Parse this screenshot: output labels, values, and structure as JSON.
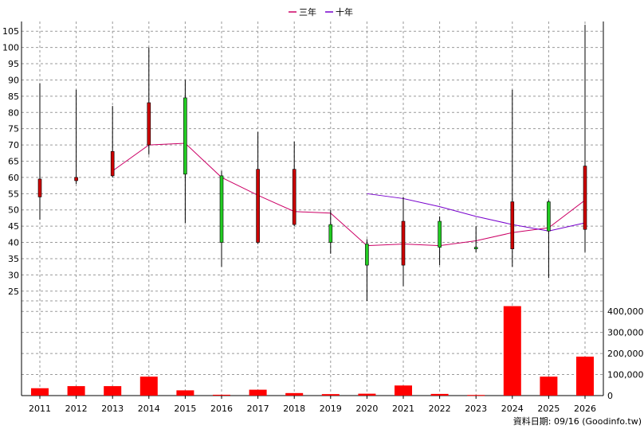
{
  "chart_data": {
    "type": "candlestick-with-volume",
    "legend": [
      {
        "name": "三年",
        "color": "#cc0066"
      },
      {
        "name": "十年",
        "color": "#7700cc"
      }
    ],
    "x_labels": [
      "2011",
      "2012",
      "2013",
      "2014",
      "2015",
      "2016",
      "2017",
      "2018",
      "2019",
      "2020",
      "2021",
      "2022",
      "2023",
      "2024",
      "2025",
      "2026"
    ],
    "price_axis": {
      "ylim": [
        22,
        108
      ],
      "ticks": [
        25,
        30,
        35,
        40,
        45,
        50,
        55,
        60,
        65,
        70,
        75,
        80,
        85,
        90,
        95,
        100,
        105
      ],
      "tick_labels": [
        "25",
        "30",
        "35",
        "40",
        "45",
        "50",
        "55",
        "60",
        "65",
        "70",
        "75",
        "80",
        "85",
        "90",
        "95",
        "100",
        "105"
      ]
    },
    "volume_axis": {
      "ylim": [
        0,
        450000
      ],
      "ticks": [
        0,
        100000,
        200000,
        300000,
        400000
      ],
      "tick_labels": [
        "0",
        "100,000",
        "200,000",
        "300,000",
        "400,000"
      ]
    },
    "candles": [
      {
        "year": "2011",
        "open": 54,
        "close": 59.5,
        "high": 89,
        "low": 47
      },
      {
        "year": "2012",
        "open": 59,
        "close": 60,
        "high": 87,
        "low": 58
      },
      {
        "year": "2013",
        "open": 60.5,
        "close": 68,
        "high": 82,
        "low": 60
      },
      {
        "year": "2014",
        "open": 70,
        "close": 83,
        "high": 100,
        "low": 67
      },
      {
        "year": "2015",
        "open": 84.5,
        "close": 61,
        "high": 90,
        "low": 46
      },
      {
        "year": "2016",
        "open": 60.5,
        "close": 40,
        "high": 62,
        "low": 32.5
      },
      {
        "year": "2017",
        "open": 40,
        "close": 62.5,
        "high": 74,
        "low": 39.5
      },
      {
        "year": "2018",
        "open": 45.5,
        "close": 62.5,
        "high": 71,
        "low": 45
      },
      {
        "year": "2019",
        "open": 45.5,
        "close": 40,
        "high": 50,
        "low": 36.5
      },
      {
        "year": "2020",
        "open": 39.5,
        "close": 33,
        "high": 41,
        "low": 22
      },
      {
        "year": "2021",
        "open": 33,
        "close": 46.5,
        "high": 54,
        "low": 26.5
      },
      {
        "year": "2022",
        "open": 46.5,
        "close": 38.5,
        "high": 48,
        "low": 33
      },
      {
        "year": "2023",
        "open": 38.5,
        "close": 38,
        "high": 45,
        "low": 37
      },
      {
        "year": "2024",
        "open": 38,
        "close": 52.5,
        "high": 87,
        "low": 32.5
      },
      {
        "year": "2025",
        "open": 52.5,
        "close": 43.5,
        "high": 53,
        "low": 29
      },
      {
        "year": "2026",
        "open": 44,
        "close": 63.5,
        "high": 107,
        "low": 37
      }
    ],
    "lines": [
      {
        "name": "三年",
        "color": "#cc0066",
        "values": [
          null,
          null,
          62,
          70,
          70.5,
          60,
          54.5,
          49.5,
          49,
          39,
          39.5,
          39,
          40.5,
          43,
          44.5,
          53
        ]
      },
      {
        "name": "十年",
        "color": "#7700cc",
        "values": [
          null,
          null,
          null,
          null,
          null,
          null,
          null,
          null,
          null,
          55,
          53.5,
          51,
          48,
          45.5,
          43.5,
          46
        ]
      }
    ],
    "volume": [
      35000,
      45000,
      45000,
      90000,
      25000,
      4000,
      28000,
      12000,
      7000,
      9000,
      48000,
      8000,
      3000,
      425000,
      90000,
      185000
    ]
  },
  "footer": {
    "data_date": "資料日期: 09/16 (Goodinfo.tw)"
  }
}
